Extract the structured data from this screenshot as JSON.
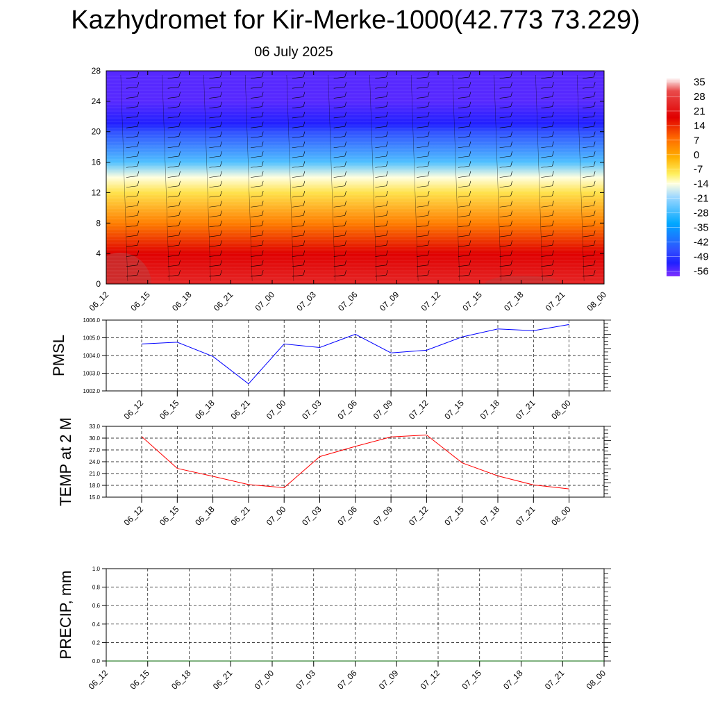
{
  "title": "Kazhydromet for Kir-Merke-1000(42.773 73.229)",
  "subtitle": "06 July 2025",
  "chart_data": [
    {
      "name": "cross-section",
      "type": "heatmap",
      "description_variable": "temperature with height and wind barbs",
      "x_ticks": [
        "06_12",
        "06_15",
        "06_18",
        "06_21",
        "07_00",
        "07_03",
        "07_06",
        "07_09",
        "07_12",
        "07_15",
        "07_18",
        "07_21",
        "08_00"
      ],
      "y_ticks": [
        0,
        4,
        8,
        12,
        16,
        20,
        24,
        28
      ],
      "ylim": [
        0,
        28
      ],
      "colorbar_labels": [
        "35",
        "28",
        "21",
        "14",
        "7",
        "0",
        "-7",
        "-14",
        "-21",
        "-28",
        "-35",
        "-42",
        "-49",
        "-56"
      ],
      "colorbar_range": [
        -63,
        42
      ],
      "colorbar_stops": [
        {
          "value": 42,
          "color": "#ffffff"
        },
        {
          "value": 35,
          "color": "#e94b4b"
        },
        {
          "value": 21,
          "color": "#e00000"
        },
        {
          "value": 10,
          "color": "#ff6a00"
        },
        {
          "value": 0,
          "color": "#ffb000"
        },
        {
          "value": -9,
          "color": "#fff060"
        },
        {
          "value": -14,
          "color": "#ffffe0"
        },
        {
          "value": -21,
          "color": "#9ed8ff"
        },
        {
          "value": -35,
          "color": "#00a8ff"
        },
        {
          "value": -49,
          "color": "#3050ff"
        },
        {
          "value": -56,
          "color": "#2020ff"
        },
        {
          "value": -63,
          "color": "#8030ff"
        }
      ],
      "column_profiles": {
        "heights": [
          0,
          4,
          8,
          12,
          14,
          16,
          20,
          21,
          24,
          28
        ],
        "temperature_by_height": [
          28,
          21,
          7,
          -7,
          -14,
          -28,
          -49,
          -56,
          -60,
          -60
        ]
      }
    },
    {
      "name": "pmsl",
      "type": "line",
      "ylabel": "PMSL",
      "ylim": [
        1002.0,
        1006.0
      ],
      "y_ticks": [
        "1002.0",
        "1003.0",
        "1004.0",
        "1005.0",
        "1006.0"
      ],
      "x_ticks": [
        "06_12",
        "06_15",
        "06_18",
        "06_21",
        "07_00",
        "07_03",
        "07_06",
        "07_09",
        "07_12",
        "07_15",
        "07_18",
        "07_21",
        "08_00"
      ],
      "series": [
        {
          "color": "#0000ff",
          "values": [
            1004.65,
            1004.75,
            1003.95,
            1002.4,
            1004.65,
            1004.45,
            1005.2,
            1004.15,
            1004.3,
            1005.05,
            1005.5,
            1005.4,
            1005.75
          ]
        }
      ]
    },
    {
      "name": "temp2m",
      "type": "line",
      "ylabel": "TEMP at 2 M",
      "ylim": [
        15.0,
        33.0
      ],
      "y_ticks": [
        "15.0",
        "18.0",
        "21.0",
        "24.0",
        "27.0",
        "30.0",
        "33.0"
      ],
      "x_ticks": [
        "06_12",
        "06_15",
        "06_18",
        "06_21",
        "07_00",
        "07_03",
        "07_06",
        "07_09",
        "07_12",
        "07_15",
        "07_18",
        "07_21",
        "08_00"
      ],
      "series": [
        {
          "color": "#ff0000",
          "values": [
            30.4,
            22.3,
            20.3,
            18.2,
            17.4,
            25.3,
            27.9,
            30.3,
            30.8,
            23.7,
            20.4,
            18.1,
            17.1
          ]
        }
      ]
    },
    {
      "name": "precip",
      "type": "line",
      "ylabel": "PRECIP, mm",
      "ylim": [
        0.0,
        1.0
      ],
      "y_ticks": [
        "0.0",
        "0.2",
        "0.4",
        "0.6",
        "0.8",
        "1.0"
      ],
      "x_ticks": [
        "06_12",
        "06_15",
        "06_18",
        "06_21",
        "07_00",
        "07_03",
        "07_06",
        "07_09",
        "07_12",
        "07_15",
        "07_18",
        "07_21",
        "08_00"
      ],
      "series": [
        {
          "color": "#006400",
          "values": [
            0,
            0,
            0,
            0,
            0,
            0,
            0,
            0,
            0,
            0,
            0,
            0
          ]
        }
      ]
    }
  ]
}
